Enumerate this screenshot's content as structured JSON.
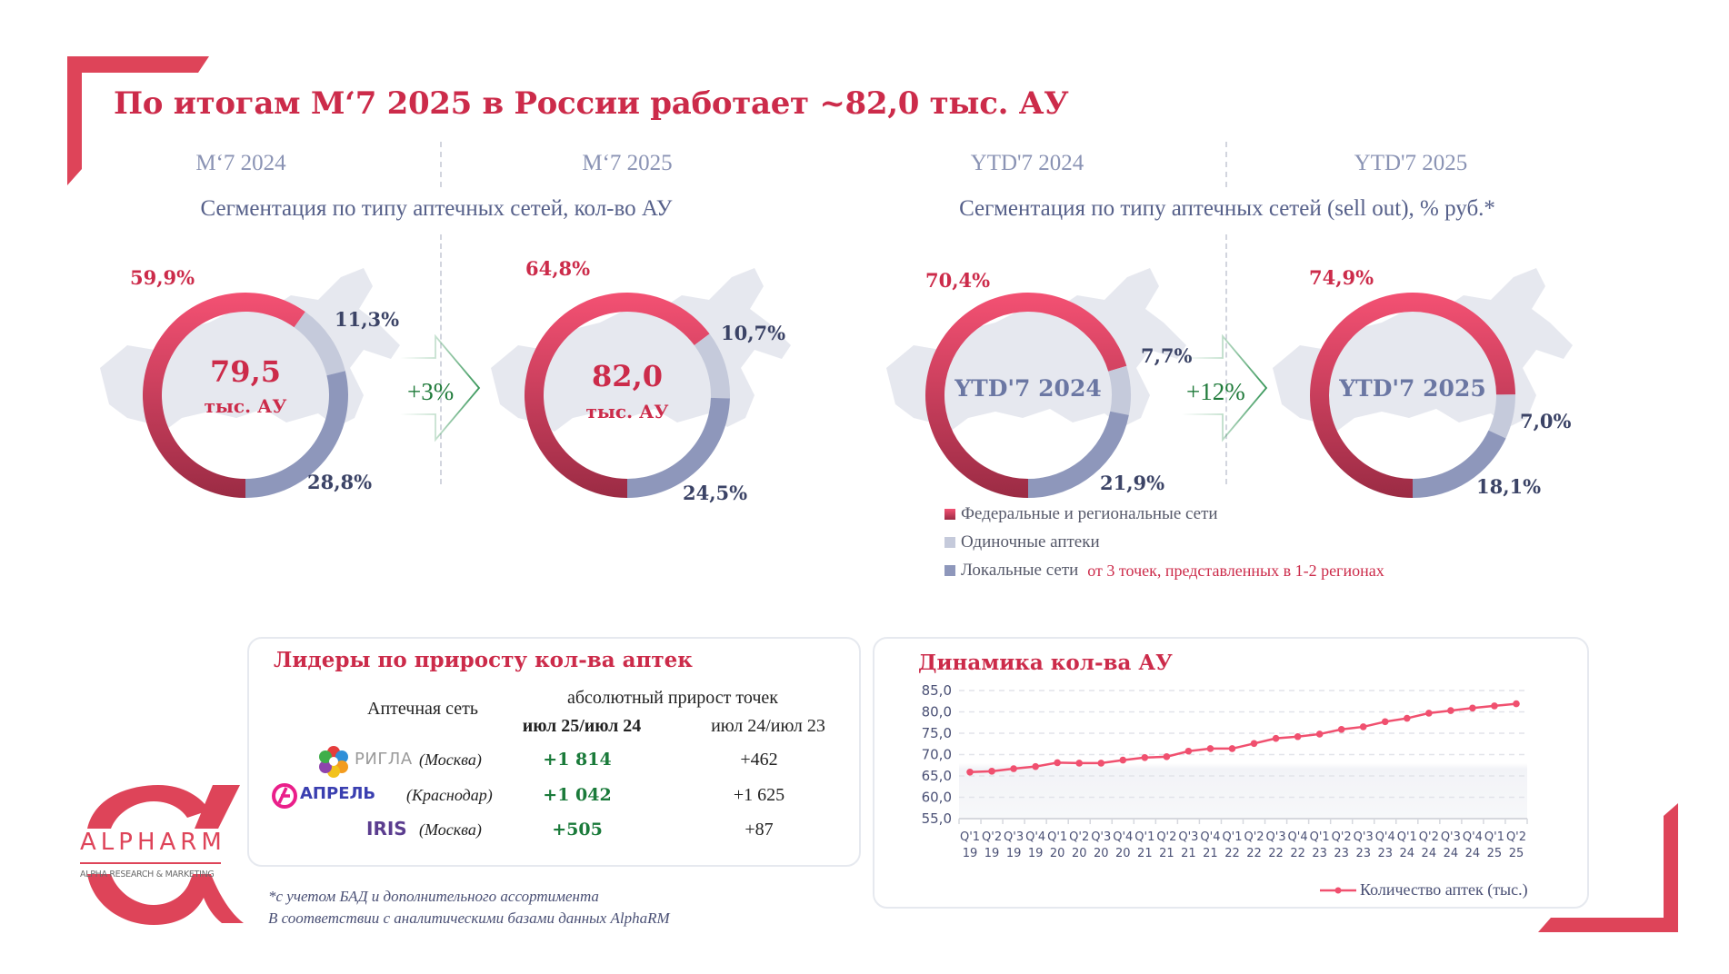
{
  "header": {
    "title": "По итогам М‘7 2025 в России работает ~82,0 тыс. АУ"
  },
  "periods": [
    "М‘7 2024",
    "М‘7 2025",
    "YTD'7 2024",
    "YTD'7 2025"
  ],
  "left_section": {
    "subtitle": "Сегментация по типу аптечных сетей, кол-во АУ",
    "growth": "+3%",
    "donuts": [
      {
        "center_value": "79,5",
        "center_unit": "тыс. АУ",
        "labels": [
          "59,9%",
          "11,3%",
          "28,8%"
        ],
        "values": [
          59.9,
          11.3,
          28.8
        ]
      },
      {
        "center_value": "82,0",
        "center_unit": "тыс. АУ",
        "labels": [
          "64,8%",
          "10,7%",
          "24,5%"
        ],
        "values": [
          64.8,
          10.7,
          24.5
        ]
      }
    ]
  },
  "right_section": {
    "subtitle": "Сегментация по типу аптечных сетей (sell out), % руб.*",
    "growth": "+12%",
    "donuts": [
      {
        "center_label": "YTD'7 2024",
        "labels": [
          "70,4%",
          "7,7%",
          "21,9%"
        ],
        "values": [
          70.4,
          7.7,
          21.9
        ]
      },
      {
        "center_label": "YTD'7 2025",
        "labels": [
          "74,9%",
          "7,0%",
          "18,1%"
        ],
        "values": [
          74.9,
          7.0,
          18.1
        ]
      }
    ]
  },
  "legend": {
    "items": [
      {
        "label": "Федеральные и региональные сети",
        "color": "#d63858"
      },
      {
        "label": "Одиночные аптеки",
        "color": "#c5cadb"
      },
      {
        "label": "Локальные сети",
        "color": "#8e97bb",
        "note": "от 3 точек, представленных в 1-2 регионах"
      }
    ]
  },
  "colors": {
    "accent": "#cc2b4a",
    "federal_top": "#f45173",
    "federal_bottom": "#9b2b44",
    "single": "#c5cadb",
    "local": "#8e97bb",
    "growth": "#1f7a3a",
    "line": "#f0506f",
    "map": "#e6e8ef"
  },
  "leaders": {
    "title": "Лидеры по приросту кол-ва аптек",
    "col_network": "Аптечная сеть",
    "col_group": "абсолютный прирост точек",
    "col_current": "июл 25/июл 24",
    "col_previous": "июл 24/июл 23",
    "rows": [
      {
        "brand": "РИГЛА",
        "city": "(Москва)",
        "current": "+1 814",
        "previous": "+462"
      },
      {
        "brand": "АПРЕЛЬ",
        "city": "(Краснодар)",
        "current": "+1 042",
        "previous": "+1 625"
      },
      {
        "brand": "IRIS",
        "city": "(Москва)",
        "current": "+505",
        "previous": "+87"
      }
    ]
  },
  "logo": {
    "name": "ALPHARM",
    "tagline": "ALPHA RESEARCH & MARKETING"
  },
  "footnotes": [
    "*с учетом БАД и дополнительного ассортимента",
    "В соответствии с аналитическими базами данных AlphaRM"
  ],
  "chart_data": {
    "type": "line",
    "title": "Динамика кол-ва АУ",
    "xlabel": "",
    "ylabel": "",
    "ylim": [
      55,
      85
    ],
    "yticks": [
      "85,0",
      "80,0",
      "75,0",
      "70,0",
      "65,0",
      "60,0",
      "55,0"
    ],
    "ytick_values": [
      85,
      80,
      75,
      70,
      65,
      60,
      55
    ],
    "grid": true,
    "legend_position": "bottom-right",
    "categories": [
      [
        "Q'1",
        "19"
      ],
      [
        "Q'2",
        "19"
      ],
      [
        "Q'3",
        "19"
      ],
      [
        "Q'4",
        "19"
      ],
      [
        "Q'1",
        "20"
      ],
      [
        "Q'2",
        "20"
      ],
      [
        "Q'3",
        "20"
      ],
      [
        "Q'4",
        "20"
      ],
      [
        "Q'1",
        "21"
      ],
      [
        "Q'2",
        "21"
      ],
      [
        "Q'3",
        "21"
      ],
      [
        "Q'4",
        "21"
      ],
      [
        "Q'1",
        "22"
      ],
      [
        "Q'2",
        "22"
      ],
      [
        "Q'3",
        "22"
      ],
      [
        "Q'4",
        "22"
      ],
      [
        "Q'1",
        "23"
      ],
      [
        "Q'2",
        "23"
      ],
      [
        "Q'3",
        "23"
      ],
      [
        "Q'4",
        "23"
      ],
      [
        "Q'1",
        "24"
      ],
      [
        "Q'2",
        "24"
      ],
      [
        "Q'3",
        "24"
      ],
      [
        "Q'4",
        "24"
      ],
      [
        "Q'1",
        "25"
      ],
      [
        "Q'2",
        "25"
      ]
    ],
    "series": [
      {
        "name": "Количество аптек (тыс.)",
        "values": [
          65.9,
          66.1,
          66.7,
          67.2,
          68.1,
          68.0,
          68.0,
          68.7,
          69.3,
          69.5,
          70.8,
          71.4,
          71.4,
          72.6,
          73.8,
          74.2,
          74.8,
          75.9,
          76.5,
          77.7,
          78.5,
          79.7,
          80.3,
          80.9,
          81.4,
          81.9
        ]
      }
    ]
  }
}
